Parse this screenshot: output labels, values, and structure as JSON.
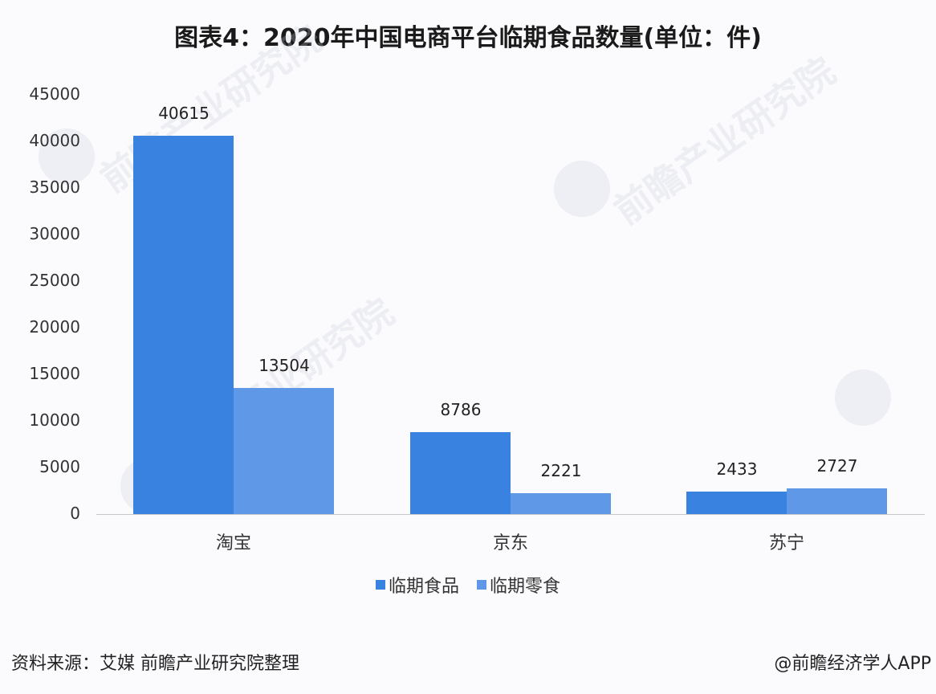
{
  "title": "图表4：2020年中国电商平台临期食品数量(单位：件)",
  "watermark": "前瞻产业研究院",
  "source": "资料来源：艾媒 前瞻产业研究院整理",
  "credit": "@前瞻经济学人APP",
  "colors": {
    "series0": "#3a82e0",
    "series1": "#5f98e6",
    "axis": "#c8c8c8"
  },
  "chart_data": {
    "type": "bar",
    "title": "图表4：2020年中国电商平台临期食品数量(单位：件)",
    "xlabel": "",
    "ylabel": "",
    "categories": [
      "淘宝",
      "京东",
      "苏宁"
    ],
    "series": [
      {
        "name": "临期食品",
        "values": [
          40615,
          8786,
          2433
        ]
      },
      {
        "name": "临期零食",
        "values": [
          13504,
          2221,
          2727
        ]
      }
    ],
    "yticks": [
      "0",
      "5000",
      "10000",
      "15000",
      "20000",
      "25000",
      "30000",
      "35000",
      "40000",
      "45000"
    ],
    "ylim": [
      0,
      45000
    ],
    "grid": false,
    "legend_position": "bottom",
    "data_labels": true
  },
  "legend": [
    {
      "label": "临期食品"
    },
    {
      "label": "临期零食"
    }
  ]
}
